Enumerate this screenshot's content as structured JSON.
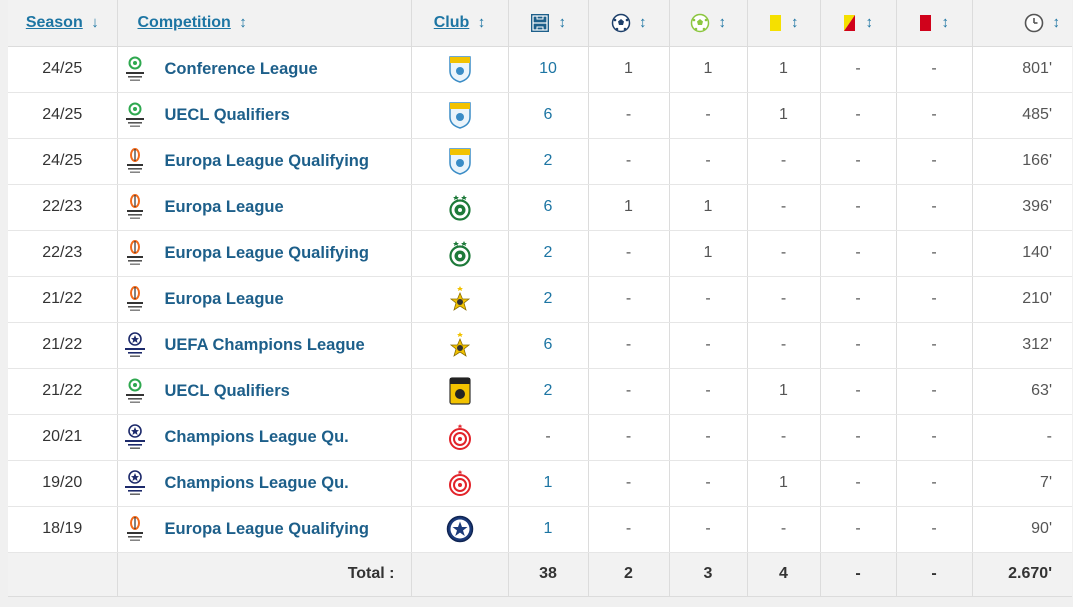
{
  "header": {
    "season": "Season",
    "season_arrow": "↓",
    "competition": "Competition",
    "club": "Club",
    "apps_icon": "lineup-icon",
    "goals_icon": "ball-icon",
    "assists_icon": "assist-ball-icon",
    "yellow_icon": "yellow-card-icon",
    "second_yellow_icon": "second-yellow-card-icon",
    "red_icon": "red-card-icon",
    "minutes_icon": "clock-icon",
    "sort_arrow": "↕"
  },
  "rows": [
    {
      "season": "24/25",
      "competition": "Conference League",
      "logo": "conference-league",
      "club": "ionikos",
      "apps": "10",
      "goals": "1",
      "assists": "1",
      "yellow": "1",
      "second_yellow": "-",
      "red": "-",
      "minutes": "801'"
    },
    {
      "season": "24/25",
      "competition": "UECL Qualifiers",
      "logo": "conference-league",
      "club": "ionikos",
      "apps": "6",
      "goals": "-",
      "assists": "-",
      "yellow": "1",
      "second_yellow": "-",
      "red": "-",
      "minutes": "485'"
    },
    {
      "season": "24/25",
      "competition": "Europa League Qualifying",
      "logo": "europa-league",
      "club": "ionikos",
      "apps": "2",
      "goals": "-",
      "assists": "-",
      "yellow": "-",
      "second_yellow": "-",
      "red": "-",
      "minutes": "166'"
    },
    {
      "season": "22/23",
      "competition": "Europa League",
      "logo": "europa-league",
      "club": "omonoia",
      "apps": "6",
      "goals": "1",
      "assists": "1",
      "yellow": "-",
      "second_yellow": "-",
      "red": "-",
      "minutes": "396'"
    },
    {
      "season": "22/23",
      "competition": "Europa League Qualifying",
      "logo": "europa-league",
      "club": "omonoia",
      "apps": "2",
      "goals": "-",
      "assists": "1",
      "yellow": "-",
      "second_yellow": "-",
      "red": "-",
      "minutes": "140'"
    },
    {
      "season": "21/22",
      "competition": "Europa League",
      "logo": "europa-league",
      "club": "sheriff",
      "apps": "2",
      "goals": "-",
      "assists": "-",
      "yellow": "-",
      "second_yellow": "-",
      "red": "-",
      "minutes": "210'"
    },
    {
      "season": "21/22",
      "competition": "UEFA Champions League",
      "logo": "champions-league",
      "club": "sheriff",
      "apps": "6",
      "goals": "-",
      "assists": "-",
      "yellow": "-",
      "second_yellow": "-",
      "red": "-",
      "minutes": "312'"
    },
    {
      "season": "21/22",
      "competition": "UECL Qualifiers",
      "logo": "conference-league",
      "club": "aris",
      "apps": "2",
      "goals": "-",
      "assists": "-",
      "yellow": "1",
      "second_yellow": "-",
      "red": "-",
      "minutes": "63'"
    },
    {
      "season": "20/21",
      "competition": "Champions League Qu.",
      "logo": "champions-league",
      "club": "olympiacos",
      "apps": "-",
      "goals": "-",
      "assists": "-",
      "yellow": "-",
      "second_yellow": "-",
      "red": "-",
      "minutes": "-"
    },
    {
      "season": "19/20",
      "competition": "Champions League Qu.",
      "logo": "champions-league",
      "club": "olympiacos",
      "apps": "1",
      "goals": "-",
      "assists": "-",
      "yellow": "1",
      "second_yellow": "-",
      "red": "-",
      "minutes": "7'"
    },
    {
      "season": "18/19",
      "competition": "Europa League Qualifying",
      "logo": "europa-league",
      "club": "atromitos",
      "apps": "1",
      "goals": "-",
      "assists": "-",
      "yellow": "-",
      "second_yellow": "-",
      "red": "-",
      "minutes": "90'"
    }
  ],
  "totals": {
    "label": "Total :",
    "apps": "38",
    "goals": "2",
    "assists": "3",
    "yellow": "4",
    "second_yellow": "-",
    "red": "-",
    "minutes": "2.670'"
  },
  "colors": {
    "link": "#1d75a3",
    "competition": "#1d5f8a",
    "header_bg": "#f2f2f2",
    "yellow_card": "#f5e000",
    "red_card": "#d0021b",
    "omonoia_green": "#1e7a3a",
    "olympiacos_red": "#e2232a",
    "aris_yellow": "#f2c200",
    "atromitos_blue": "#1b3a7a"
  }
}
